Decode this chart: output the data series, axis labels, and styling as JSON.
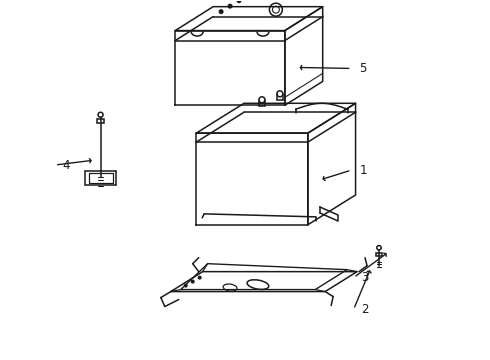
{
  "bg_color": "#ffffff",
  "line_color": "#1a1a1a",
  "lw": 1.1,
  "fig_width": 4.9,
  "fig_height": 3.6,
  "dpi": 100,
  "label_fontsize": 8.5
}
